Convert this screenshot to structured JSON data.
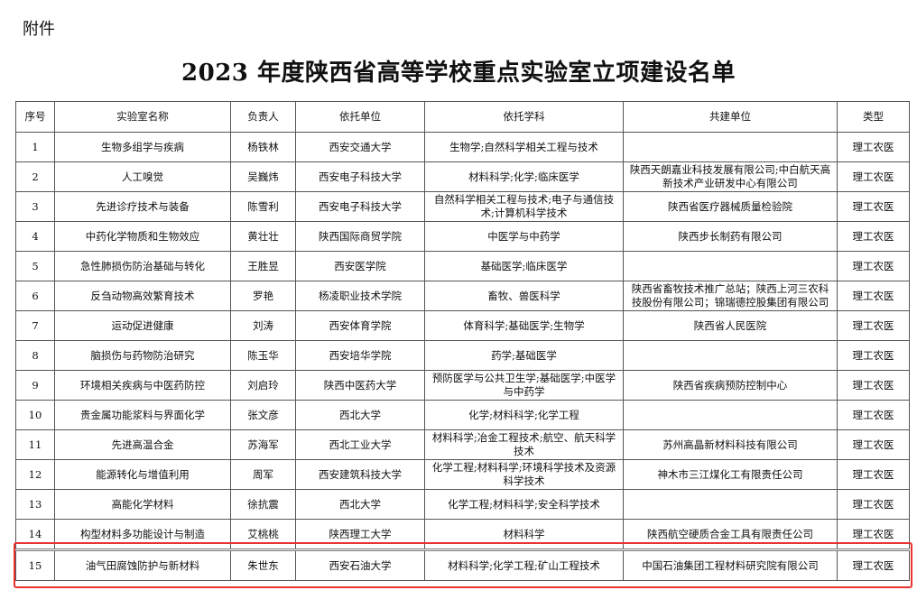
{
  "attachment_label": "附件",
  "title": "2023 年度陕西省高等学校重点实验室立项建设名单",
  "table": {
    "headers": [
      "序号",
      "实验室名称",
      "负责人",
      "依托单位",
      "依托学科",
      "共建单位",
      "类型"
    ],
    "rows": [
      [
        "1",
        "生物多组学与疾病",
        "杨铁林",
        "西安交通大学",
        "生物学;自然科学相关工程与技术",
        "",
        "理工农医"
      ],
      [
        "2",
        "人工嗅觉",
        "吴巍炜",
        "西安电子科技大学",
        "材料科学;化学;临床医学",
        "陕西天朗嘉业科技发展有限公司;中白航天高新技术产业研发中心有限公司",
        "理工农医"
      ],
      [
        "3",
        "先进诊疗技术与装备",
        "陈雪利",
        "西安电子科技大学",
        "自然科学相关工程与技术;电子与通信技术;计算机科学技术",
        "陕西省医疗器械质量检验院",
        "理工农医"
      ],
      [
        "4",
        "中药化学物质和生物效应",
        "黄壮壮",
        "陕西国际商贸学院",
        "中医学与中药学",
        "陕西步长制药有限公司",
        "理工农医"
      ],
      [
        "5",
        "急性肺损伤防治基础与转化",
        "王胜昱",
        "西安医学院",
        "基础医学;临床医学",
        "",
        "理工农医"
      ],
      [
        "6",
        "反刍动物高效繁育技术",
        "罗艳",
        "杨凌职业技术学院",
        "畜牧、兽医科学",
        "陕西省畜牧技术推广总站；陕西上河三农科技股份有限公司；锦瑞德控股集团有限公司",
        "理工农医"
      ],
      [
        "7",
        "运动促进健康",
        "刘涛",
        "西安体育学院",
        "体育科学;基础医学;生物学",
        "陕西省人民医院",
        "理工农医"
      ],
      [
        "8",
        "脑损伤与药物防治研究",
        "陈玉华",
        "西安培华学院",
        "药学;基础医学",
        "",
        "理工农医"
      ],
      [
        "9",
        "环境相关疾病与中医药防控",
        "刘启玲",
        "陕西中医药大学",
        "预防医学与公共卫生学;基础医学;中医学与中药学",
        "陕西省疾病预防控制中心",
        "理工农医"
      ],
      [
        "10",
        "贵金属功能浆料与界面化学",
        "张文彦",
        "西北大学",
        "化学;材料科学;化学工程",
        "",
        "理工农医"
      ],
      [
        "11",
        "先进高温合金",
        "苏海军",
        "西北工业大学",
        "材料科学;冶金工程技术;航空、航天科学技术",
        "苏州高晶新材料科技有限公司",
        "理工农医"
      ],
      [
        "12",
        "能源转化与增值利用",
        "周军",
        "西安建筑科技大学",
        "化学工程;材料科学;环境科学技术及资源科学技术",
        "神木市三江煤化工有限责任公司",
        "理工农医"
      ],
      [
        "13",
        "高能化学材料",
        "徐抗震",
        "西北大学",
        "化学工程;材料科学;安全科学技术",
        "",
        "理工农医"
      ],
      [
        "14",
        "构型材料多功能设计与制造",
        "艾桃桃",
        "陕西理工大学",
        "材料科学",
        "陕西航空硬质合金工具有限责任公司",
        "理工农医"
      ],
      [
        "15",
        "油气田腐蚀防护与新材料",
        "朱世东",
        "西安石油大学",
        "材料科学;化学工程;矿山工程技术",
        "中国石油集团工程材料研究院有限公司",
        "理工农医"
      ]
    ]
  },
  "highlight_color": "#e8332f"
}
